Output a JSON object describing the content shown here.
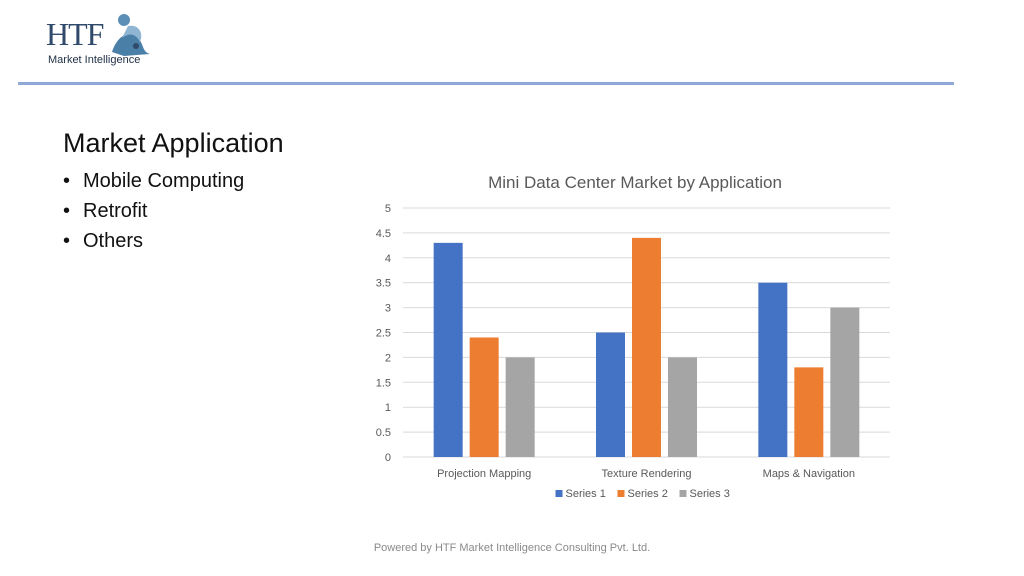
{
  "logo": {
    "brand": "HTF",
    "tagline": "Market Intelligence"
  },
  "heading": "Market Application",
  "bullets": [
    "Mobile Computing",
    "Retrofit",
    "Others"
  ],
  "footer": "Powered by HTF Market Intelligence Consulting Pvt. Ltd.",
  "chart_data": {
    "type": "bar",
    "title": "Mini Data Center Market by Application",
    "categories": [
      "Projection Mapping",
      "Texture Rendering",
      "Maps & Navigation"
    ],
    "series": [
      {
        "name": "Series 1",
        "values": [
          4.3,
          2.5,
          3.5
        ],
        "color": "#4472c4"
      },
      {
        "name": "Series 2",
        "values": [
          2.4,
          4.4,
          1.8
        ],
        "color": "#ed7d31"
      },
      {
        "name": "Series 3",
        "values": [
          2,
          2,
          3
        ],
        "color": "#a5a5a5"
      }
    ],
    "ylim": [
      0,
      5
    ],
    "yticks": [
      "0",
      "0.5",
      "1",
      "1.5",
      "2",
      "2.5",
      "3",
      "3.5",
      "4",
      "4.5",
      "5"
    ],
    "grid": true,
    "legend": "bottom"
  }
}
